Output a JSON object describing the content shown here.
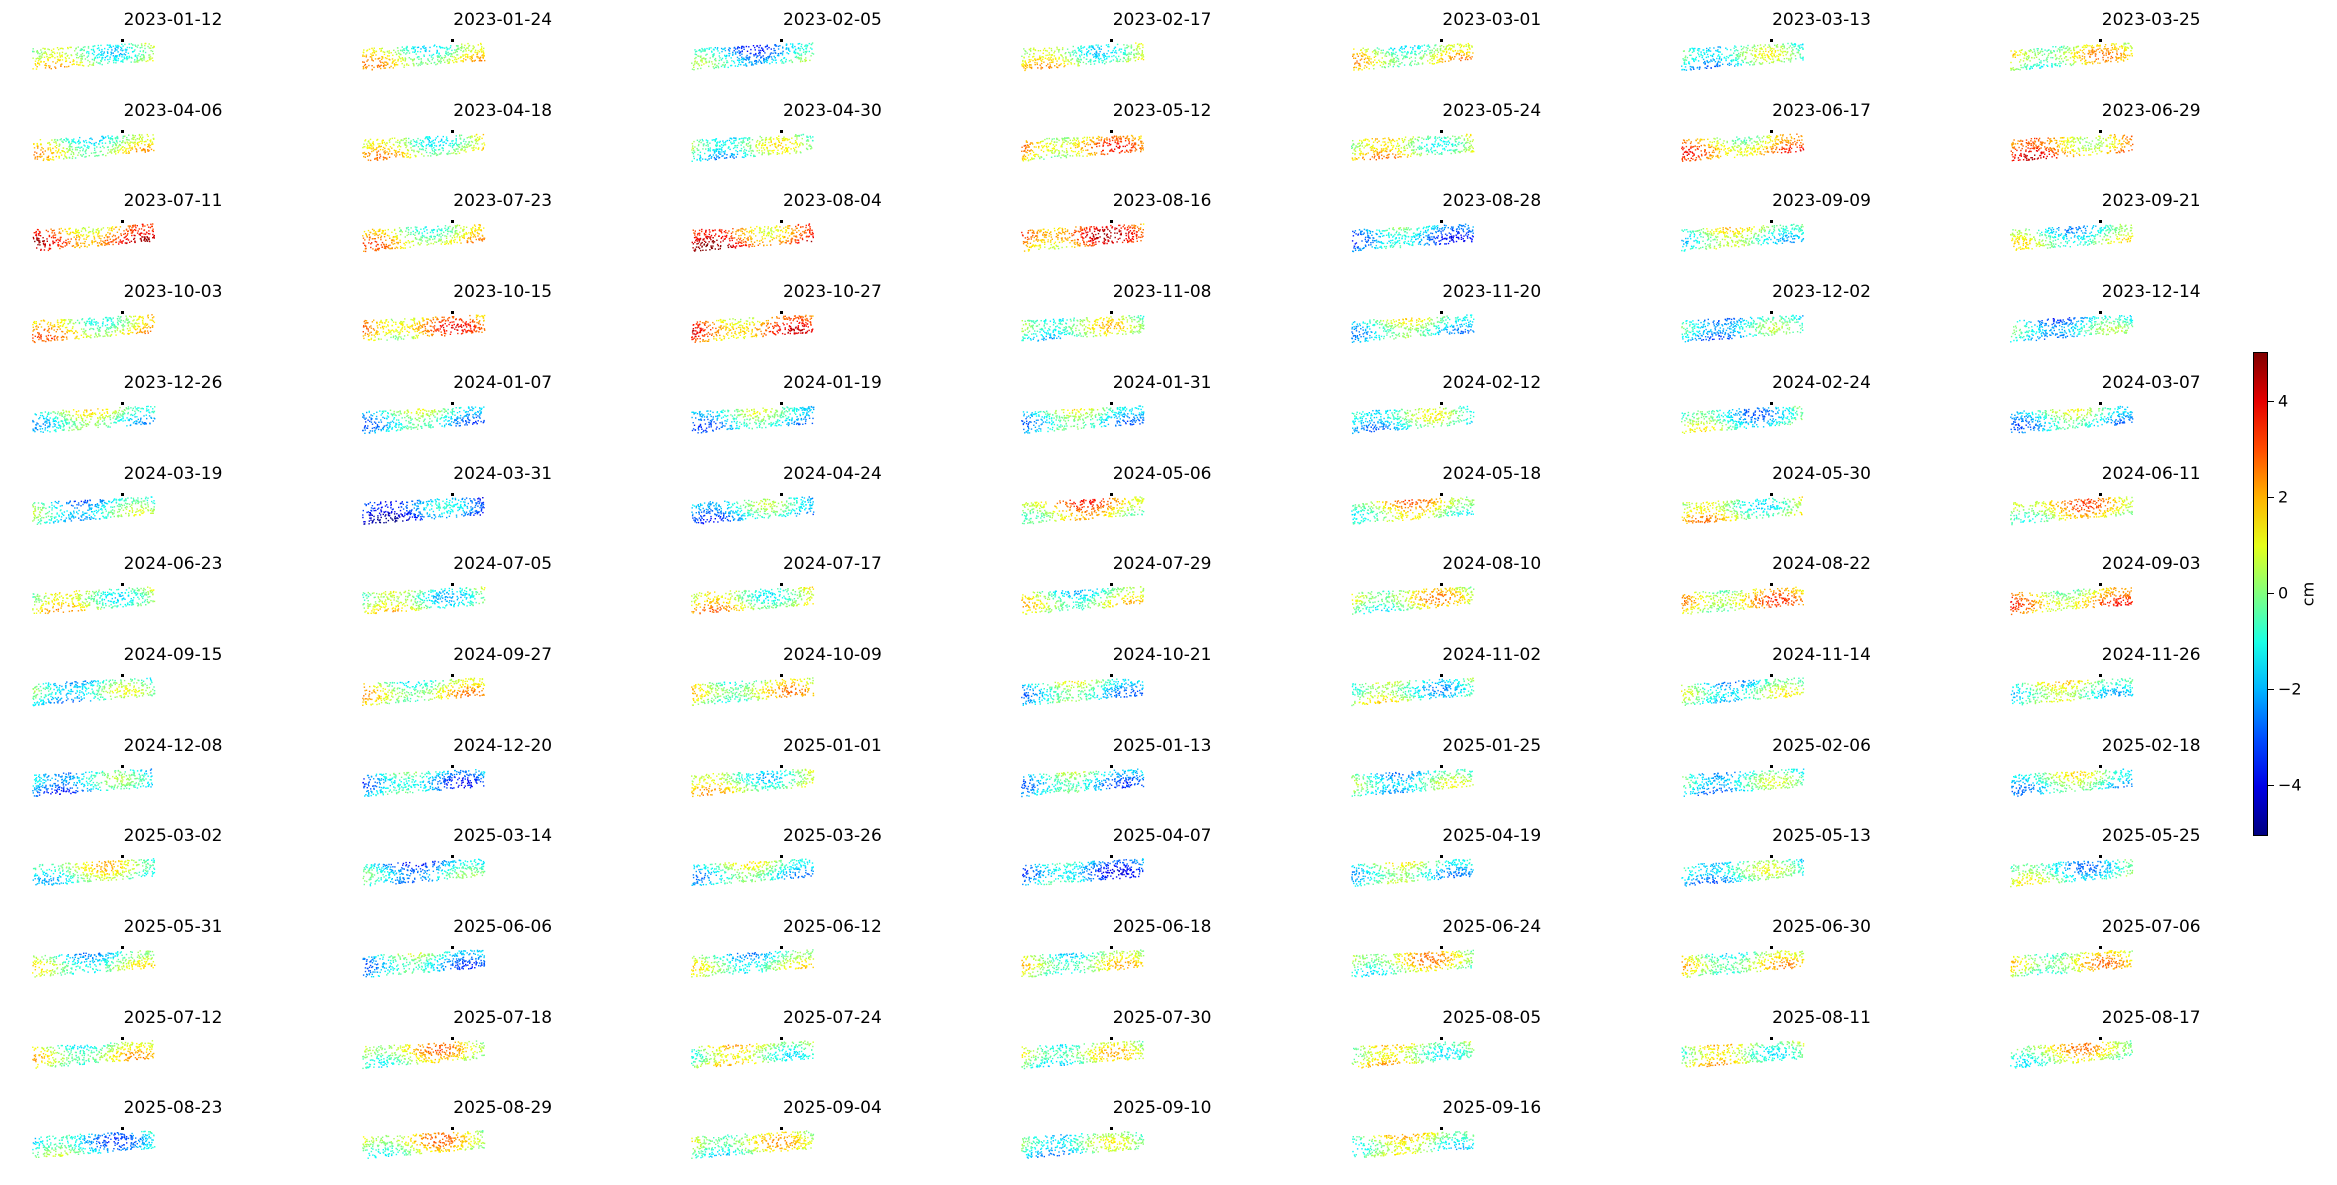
{
  "chart_data": {
    "type": "scatter",
    "dates": [
      "2023-01-12",
      "2023-01-24",
      "2023-02-05",
      "2023-02-17",
      "2023-03-01",
      "2023-03-13",
      "2023-03-25",
      "2023-04-06",
      "2023-04-18",
      "2023-04-30",
      "2023-05-12",
      "2023-05-24",
      "2023-06-17",
      "2023-06-29",
      "2023-07-11",
      "2023-07-23",
      "2023-08-04",
      "2023-08-16",
      "2023-08-28",
      "2023-09-09",
      "2023-09-21",
      "2023-10-03",
      "2023-10-15",
      "2023-10-27",
      "2023-11-08",
      "2023-11-20",
      "2023-12-02",
      "2023-12-14",
      "2023-12-26",
      "2024-01-07",
      "2024-01-19",
      "2024-01-31",
      "2024-02-12",
      "2024-02-24",
      "2024-03-07",
      "2024-03-19",
      "2024-03-31",
      "2024-04-24",
      "2024-05-06",
      "2024-05-18",
      "2024-05-30",
      "2024-06-11",
      "2024-06-23",
      "2024-07-05",
      "2024-07-17",
      "2024-07-29",
      "2024-08-10",
      "2024-08-22",
      "2024-09-03",
      "2024-09-15",
      "2024-09-27",
      "2024-10-09",
      "2024-10-21",
      "2024-11-02",
      "2024-11-14",
      "2024-11-26",
      "2024-12-08",
      "2024-12-20",
      "2025-01-01",
      "2025-01-13",
      "2025-01-25",
      "2025-02-06",
      "2025-02-18",
      "2025-03-02",
      "2025-03-14",
      "2025-03-26",
      "2025-04-07",
      "2025-04-19",
      "2025-05-13",
      "2025-05-25",
      "2025-05-31",
      "2025-06-06",
      "2025-06-12",
      "2025-06-18",
      "2025-06-24",
      "2025-06-30",
      "2025-07-06",
      "2025-07-12",
      "2025-07-18",
      "2025-07-24",
      "2025-07-30",
      "2025-08-05",
      "2025-08-11",
      "2025-08-17",
      "2025-08-23",
      "2025-08-29",
      "2025-09-04",
      "2025-09-10",
      "2025-09-16"
    ],
    "mean_displacement": [
      0.2,
      0.5,
      -1.5,
      0.3,
      0.4,
      -0.8,
      0.6,
      0.3,
      0.6,
      -0.5,
      1.5,
      0.8,
      1.6,
      2.2,
      2.6,
      1.0,
      3.0,
      2.6,
      -1.8,
      0.0,
      -0.4,
      1.0,
      1.8,
      2.2,
      -0.2,
      -0.5,
      -1.5,
      -1.5,
      -0.3,
      -1.0,
      -1.2,
      -0.8,
      -0.8,
      -0.8,
      -1.0,
      -1.2,
      -3.0,
      -1.4,
      1.5,
      0.8,
      0.5,
      1.2,
      0.5,
      0.0,
      0.7,
      0.0,
      0.5,
      1.2,
      1.5,
      -1.0,
      0.5,
      0.5,
      -0.8,
      -0.3,
      -0.8,
      0.0,
      -1.6,
      -1.6,
      0.2,
      -1.2,
      -1.0,
      -1.2,
      -0.6,
      0.0,
      -1.8,
      -0.6,
      -2.0,
      -0.5,
      -1.0,
      -0.7,
      -0.5,
      -1.2,
      -0.5,
      0.0,
      0.6,
      0.3,
      0.6,
      0.3,
      0.8,
      0.6,
      0.0,
      0.6,
      0.6,
      0.6,
      -1.3,
      0.8,
      0.3,
      -0.8,
      0.3
    ],
    "colorbar": {
      "label": "cm",
      "vmin": -5,
      "vmax": 5,
      "ticks": [
        4,
        2,
        0,
        -2,
        -4
      ],
      "tick_labels": [
        "4",
        "2",
        "0",
        "−2",
        "−4"
      ],
      "colormap": "jet"
    },
    "reference_point_color": "#000000",
    "grid": false,
    "layout": "7 columns x 13 rows"
  }
}
